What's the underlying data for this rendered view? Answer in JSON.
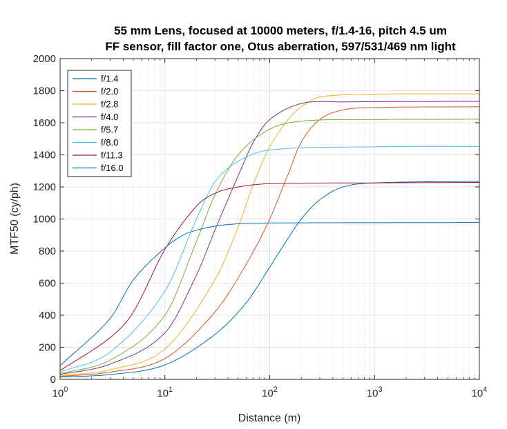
{
  "chart_data": {
    "type": "line",
    "title": [
      "55 mm Lens, focused at 10000 meters, f/1.4-16, pitch 4.5 um",
      "FF sensor, fill factor one, Otus aberration, 597/531/469 nm light"
    ],
    "xlabel": "Distance (m)",
    "ylabel": "MTF50 (cy/ph)",
    "x_scale": "log",
    "xlim": [
      1,
      10000
    ],
    "ylim": [
      0,
      2000
    ],
    "x_ticks": [
      1,
      10,
      100,
      1000,
      10000
    ],
    "x_tick_labels": [
      {
        "base": "10",
        "exp": "0"
      },
      {
        "base": "10",
        "exp": "1"
      },
      {
        "base": "10",
        "exp": "2"
      },
      {
        "base": "10",
        "exp": "3"
      },
      {
        "base": "10",
        "exp": "4"
      }
    ],
    "y_ticks": [
      0,
      200,
      400,
      600,
      800,
      1000,
      1200,
      1400,
      1600,
      1800,
      2000
    ],
    "grid": true,
    "minor_grid": true,
    "legend_position": "top-left",
    "series": [
      {
        "name": "f/1.4",
        "color": "#0072BD",
        "x": [
          1,
          3,
          10,
          30,
          60,
          100,
          150,
          200,
          300,
          500,
          1000,
          10000
        ],
        "y": [
          15,
          30,
          90,
          280,
          480,
          700,
          880,
          1000,
          1120,
          1200,
          1225,
          1235
        ]
      },
      {
        "name": "f/2.0",
        "color": "#D95319",
        "x": [
          1,
          3,
          10,
          30,
          60,
          100,
          150,
          200,
          300,
          500,
          1000,
          10000
        ],
        "y": [
          18,
          45,
          130,
          420,
          720,
          1000,
          1280,
          1480,
          1620,
          1680,
          1695,
          1700
        ]
      },
      {
        "name": "f/2.8",
        "color": "#EDB120",
        "x": [
          1,
          3,
          10,
          30,
          50,
          70,
          100,
          150,
          200,
          300,
          1000,
          10000
        ],
        "y": [
          22,
          60,
          190,
          620,
          950,
          1220,
          1450,
          1620,
          1700,
          1760,
          1778,
          1780
        ]
      },
      {
        "name": "f/4.0",
        "color": "#7E2F8E",
        "x": [
          1,
          3,
          10,
          20,
          30,
          50,
          70,
          100,
          200,
          500,
          10000
        ],
        "y": [
          30,
          95,
          290,
          650,
          930,
          1270,
          1480,
          1620,
          1720,
          1730,
          1733
        ]
      },
      {
        "name": "f/5.7",
        "color": "#77AC30",
        "x": [
          1,
          3,
          10,
          20,
          30,
          50,
          100,
          200,
          1000,
          10000
        ],
        "y": [
          35,
          120,
          400,
          860,
          1150,
          1400,
          1560,
          1610,
          1620,
          1622
        ]
      },
      {
        "name": "f/8.0",
        "color": "#4DBEEE",
        "x": [
          1,
          3,
          10,
          20,
          30,
          50,
          100,
          1000,
          10000
        ],
        "y": [
          45,
          170,
          550,
          1000,
          1230,
          1360,
          1430,
          1450,
          1452
        ]
      },
      {
        "name": "f/11.3",
        "color": "#A2142F",
        "x": [
          1,
          3,
          5,
          10,
          20,
          30,
          50,
          100,
          1000,
          10000
        ],
        "y": [
          55,
          260,
          420,
          810,
          1080,
          1160,
          1200,
          1220,
          1225,
          1228
        ]
      },
      {
        "name": "f/16.0",
        "color": "#0072BD",
        "x": [
          1,
          3,
          5,
          10,
          15,
          20,
          30,
          50,
          100,
          10000
        ],
        "y": [
          85,
          380,
          620,
          820,
          900,
          930,
          955,
          970,
          975,
          978
        ]
      }
    ]
  }
}
